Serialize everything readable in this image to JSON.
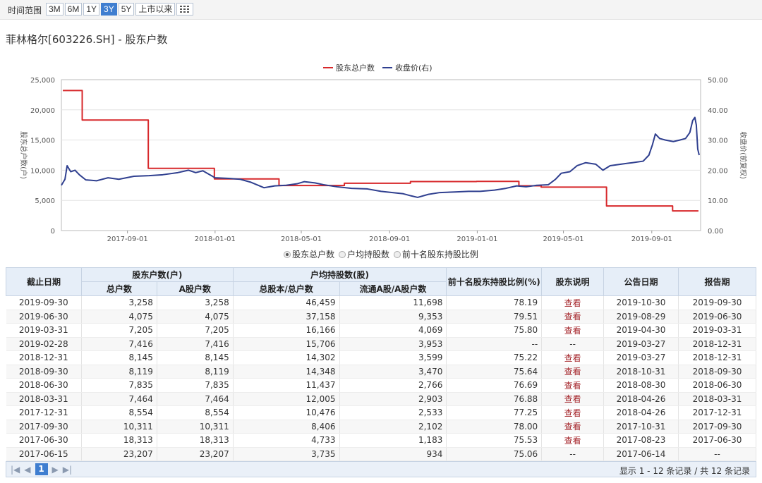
{
  "toolbar": {
    "range_label": "时间范围",
    "ranges": [
      "3M",
      "6M",
      "1Y",
      "3Y",
      "5Y",
      "上市以来"
    ],
    "active_range": "3Y"
  },
  "title": "菲林格尔[603226.SH] - 股东户数",
  "chart_data": {
    "type": "line",
    "legend_position": "top-center",
    "x_tick_labels": [
      "2017-09-01",
      "2018-01-01",
      "2018-05-01",
      "2018-09-01",
      "2019-01-01",
      "2019-05-01",
      "2019-09-01"
    ],
    "x_range": [
      "2017-06-01",
      "2019-11-08"
    ],
    "y_left": {
      "label": "股东总户数(户)",
      "ticks": [
        "0",
        "5,000",
        "10,000",
        "15,000",
        "20,000",
        "25,000"
      ],
      "range": [
        0,
        25000
      ]
    },
    "y_right": {
      "label": "收盘价(前复权)",
      "ticks": [
        "0.00",
        "10.00",
        "20.00",
        "30.00",
        "40.00",
        "50.00"
      ],
      "range": [
        0,
        50
      ]
    },
    "grid": true,
    "series": [
      {
        "name": "股东总户数",
        "color": "#d7282b",
        "axis": "left",
        "step": true,
        "points": [
          [
            "2017-06-03",
            23207
          ],
          [
            "2017-06-15",
            23207
          ],
          [
            "2017-06-30",
            18313
          ],
          [
            "2017-09-30",
            10311
          ],
          [
            "2017-12-31",
            8554
          ],
          [
            "2018-03-31",
            7464
          ],
          [
            "2018-06-30",
            7835
          ],
          [
            "2018-09-30",
            8119
          ],
          [
            "2018-12-31",
            8145
          ],
          [
            "2019-02-28",
            7416
          ],
          [
            "2019-03-31",
            7205
          ],
          [
            "2019-06-30",
            4075
          ],
          [
            "2019-09-30",
            3258
          ],
          [
            "2019-11-05",
            3258
          ]
        ]
      },
      {
        "name": "收盘价(右)",
        "color": "#2f3f8f",
        "axis": "right",
        "points": [
          [
            "2017-06-01",
            15.0
          ],
          [
            "2017-06-06",
            17.0
          ],
          [
            "2017-06-09",
            21.5
          ],
          [
            "2017-06-14",
            19.5
          ],
          [
            "2017-06-20",
            20.0
          ],
          [
            "2017-06-26",
            18.5
          ],
          [
            "2017-07-05",
            16.8
          ],
          [
            "2017-07-20",
            16.5
          ],
          [
            "2017-08-05",
            17.5
          ],
          [
            "2017-08-20",
            17.0
          ],
          [
            "2017-09-10",
            18.0
          ],
          [
            "2017-10-01",
            18.2
          ],
          [
            "2017-10-20",
            18.5
          ],
          [
            "2017-11-10",
            19.2
          ],
          [
            "2017-11-25",
            20.0
          ],
          [
            "2017-12-05",
            19.2
          ],
          [
            "2017-12-15",
            19.8
          ],
          [
            "2018-01-01",
            17.5
          ],
          [
            "2018-01-20",
            17.3
          ],
          [
            "2018-02-05",
            17.0
          ],
          [
            "2018-02-20",
            16.0
          ],
          [
            "2018-03-10",
            14.2
          ],
          [
            "2018-03-25",
            14.8
          ],
          [
            "2018-04-10",
            15.0
          ],
          [
            "2018-04-25",
            15.5
          ],
          [
            "2018-05-05",
            16.2
          ],
          [
            "2018-05-20",
            15.8
          ],
          [
            "2018-06-01",
            15.2
          ],
          [
            "2018-06-20",
            14.5
          ],
          [
            "2018-07-10",
            14.0
          ],
          [
            "2018-08-01",
            13.8
          ],
          [
            "2018-08-20",
            13.0
          ],
          [
            "2018-09-05",
            12.6
          ],
          [
            "2018-09-20",
            12.2
          ],
          [
            "2018-10-01",
            11.5
          ],
          [
            "2018-10-10",
            11.0
          ],
          [
            "2018-10-25",
            12.0
          ],
          [
            "2018-11-10",
            12.6
          ],
          [
            "2018-12-01",
            12.8
          ],
          [
            "2018-12-20",
            13.0
          ],
          [
            "2019-01-05",
            13.0
          ],
          [
            "2019-01-25",
            13.4
          ],
          [
            "2019-02-10",
            14.0
          ],
          [
            "2019-02-25",
            14.8
          ],
          [
            "2019-03-10",
            14.5
          ],
          [
            "2019-03-25",
            15.0
          ],
          [
            "2019-04-10",
            15.2
          ],
          [
            "2019-04-20",
            17.0
          ],
          [
            "2019-04-28",
            19.0
          ],
          [
            "2019-05-10",
            19.5
          ],
          [
            "2019-05-20",
            21.5
          ],
          [
            "2019-06-01",
            22.5
          ],
          [
            "2019-06-15",
            22.0
          ],
          [
            "2019-06-25",
            20.0
          ],
          [
            "2019-07-05",
            21.5
          ],
          [
            "2019-07-20",
            22.0
          ],
          [
            "2019-08-05",
            22.5
          ],
          [
            "2019-08-20",
            23.0
          ],
          [
            "2019-08-28",
            25.0
          ],
          [
            "2019-09-02",
            28.5
          ],
          [
            "2019-09-06",
            32.0
          ],
          [
            "2019-09-12",
            30.5
          ],
          [
            "2019-09-20",
            30.0
          ],
          [
            "2019-10-01",
            29.5
          ],
          [
            "2019-10-10",
            30.0
          ],
          [
            "2019-10-18",
            30.5
          ],
          [
            "2019-10-24",
            32.5
          ],
          [
            "2019-10-28",
            36.5
          ],
          [
            "2019-10-31",
            37.5
          ],
          [
            "2019-11-02",
            35.0
          ],
          [
            "2019-11-04",
            27.0
          ],
          [
            "2019-11-06",
            25.0
          ]
        ]
      }
    ]
  },
  "tabs": [
    {
      "label": "股东总户数",
      "selected": true
    },
    {
      "label": "户均持股数",
      "selected": false
    },
    {
      "label": "前十名股东持股比例",
      "selected": false
    }
  ],
  "table": {
    "group_headers": {
      "date": "截止日期",
      "holders": "股东户数(户)",
      "avg": "户均持股数(股)",
      "top10": "前十名股东持股比例(%)",
      "note": "股东说明",
      "announce": "公告日期",
      "period": "报告期"
    },
    "sub_headers": [
      "总户数",
      "A股户数",
      "总股本/总户数",
      "流通A股/A股户数"
    ],
    "rows": [
      [
        "2019-09-30",
        "3,258",
        "3,258",
        "46,459",
        "11,698",
        "78.19",
        "查看",
        "2019-10-30",
        "2019-09-30"
      ],
      [
        "2019-06-30",
        "4,075",
        "4,075",
        "37,158",
        "9,353",
        "79.51",
        "查看",
        "2019-08-29",
        "2019-06-30"
      ],
      [
        "2019-03-31",
        "7,205",
        "7,205",
        "16,166",
        "4,069",
        "75.80",
        "查看",
        "2019-04-30",
        "2019-03-31"
      ],
      [
        "2019-02-28",
        "7,416",
        "7,416",
        "15,706",
        "3,953",
        "--",
        "--",
        "2019-03-27",
        "2018-12-31"
      ],
      [
        "2018-12-31",
        "8,145",
        "8,145",
        "14,302",
        "3,599",
        "75.22",
        "查看",
        "2019-03-27",
        "2018-12-31"
      ],
      [
        "2018-09-30",
        "8,119",
        "8,119",
        "14,348",
        "3,470",
        "75.64",
        "查看",
        "2018-10-31",
        "2018-09-30"
      ],
      [
        "2018-06-30",
        "7,835",
        "7,835",
        "11,437",
        "2,766",
        "76.69",
        "查看",
        "2018-08-30",
        "2018-06-30"
      ],
      [
        "2018-03-31",
        "7,464",
        "7,464",
        "12,005",
        "2,903",
        "76.88",
        "查看",
        "2018-04-26",
        "2018-03-31"
      ],
      [
        "2017-12-31",
        "8,554",
        "8,554",
        "10,476",
        "2,533",
        "77.25",
        "查看",
        "2018-04-26",
        "2017-12-31"
      ],
      [
        "2017-09-30",
        "10,311",
        "10,311",
        "8,406",
        "2,102",
        "78.00",
        "查看",
        "2017-10-31",
        "2017-09-30"
      ],
      [
        "2017-06-30",
        "18,313",
        "18,313",
        "4,733",
        "1,183",
        "75.53",
        "查看",
        "2017-08-23",
        "2017-06-30"
      ],
      [
        "2017-06-15",
        "23,207",
        "23,207",
        "3,735",
        "934",
        "75.06",
        "--",
        "2017-06-14",
        "--"
      ]
    ]
  },
  "footer": {
    "current_page": "1",
    "info": "显示 1 - 12 条记录 / 共 12 条记录"
  }
}
